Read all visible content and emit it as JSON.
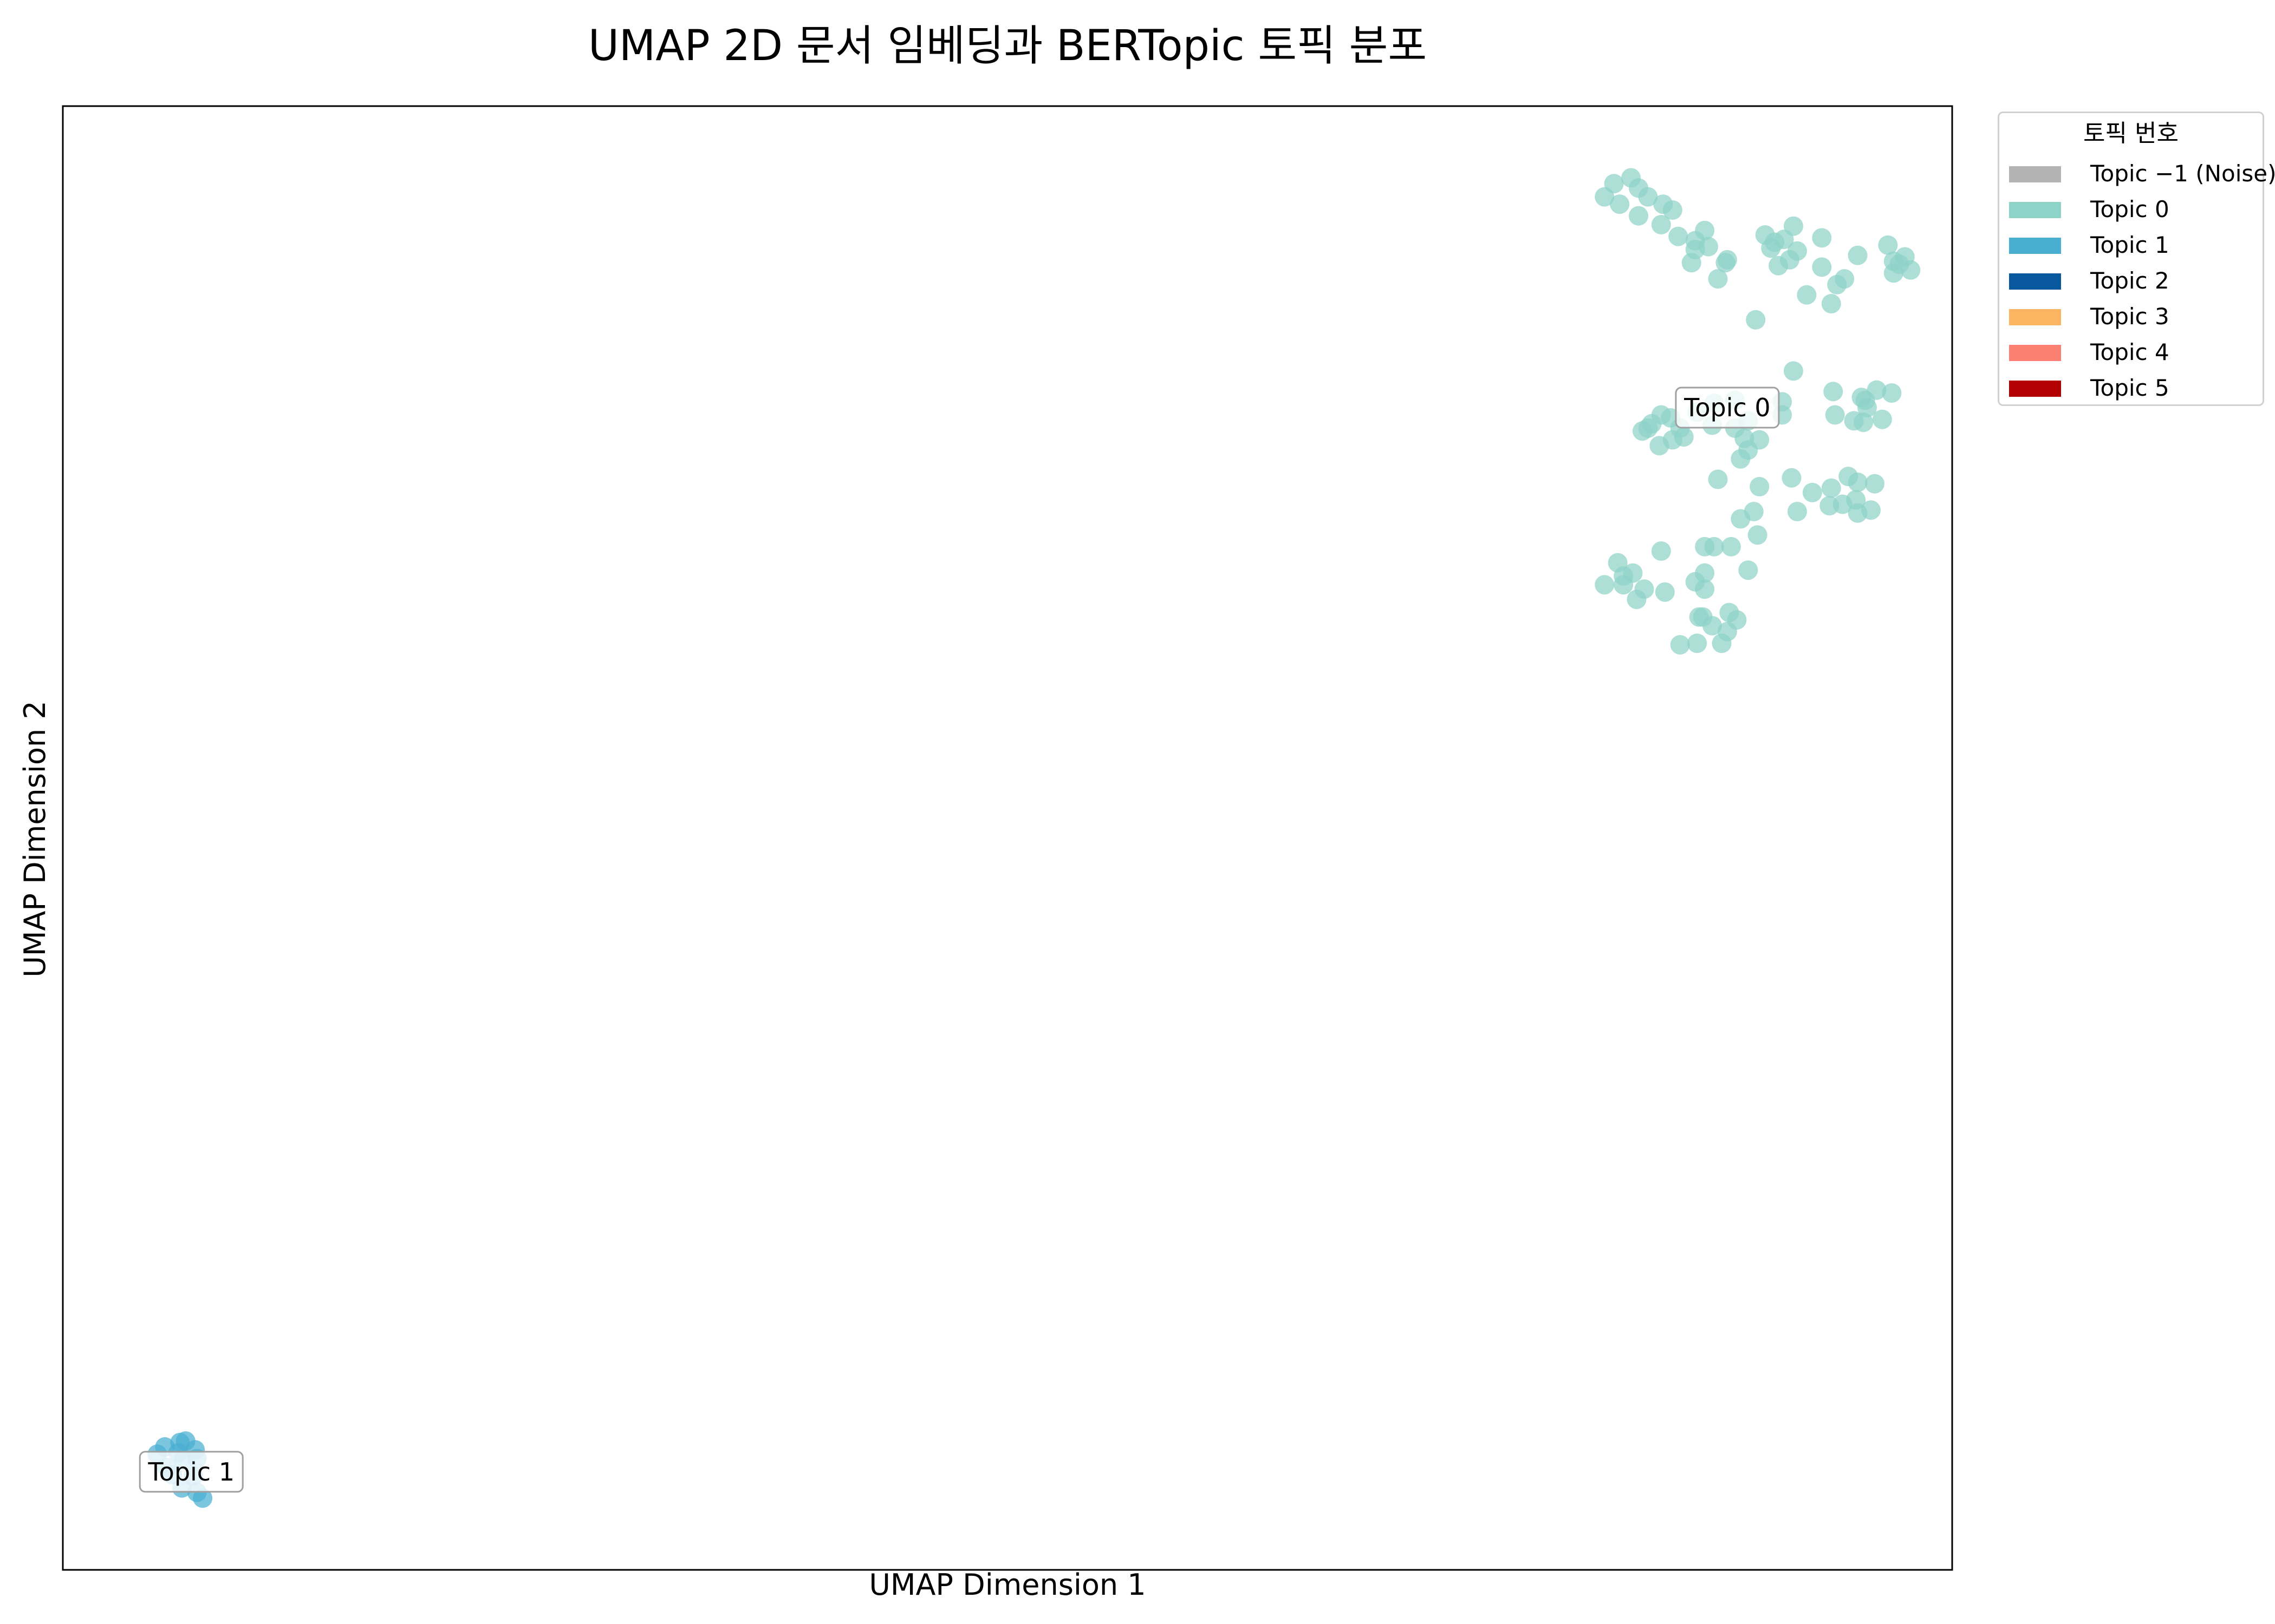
{
  "chart_data": {
    "type": "scatter",
    "title": "UMAP 2D 문서 임베딩과 BERTopic 토픽 분포",
    "xlabel": "UMAP Dimension 1",
    "ylabel": "UMAP Dimension 2",
    "xlim": [
      0,
      100
    ],
    "ylim": [
      0,
      100
    ],
    "grid": false,
    "legend": {
      "title": "토픽 번호",
      "placement": "outside-right-top",
      "entries": [
        {
          "label": "Topic −1 (Noise)",
          "color": "#b3b3b3"
        },
        {
          "label": "Topic 0",
          "color": "#8dd3c7"
        },
        {
          "label": "Topic 1",
          "color": "#4aaed1"
        },
        {
          "label": "Topic 2",
          "color": "#08589e"
        },
        {
          "label": "Topic 3",
          "color": "#fdb462"
        },
        {
          "label": "Topic 4",
          "color": "#fb8072"
        },
        {
          "label": "Topic 5",
          "color": "#b30000"
        }
      ]
    },
    "annotations": [
      {
        "text": "Topic 0",
        "x": 88.1,
        "y": 79.4
      },
      {
        "text": "Topic 1",
        "x": 6.8,
        "y": 6.7
      }
    ],
    "series": [
      {
        "name": "Topic 0",
        "color": "#8dd3c7",
        "points": [
          [
            81.6,
            93.8
          ],
          [
            82.1,
            94.7
          ],
          [
            83.0,
            95.1
          ],
          [
            83.4,
            94.4
          ],
          [
            83.9,
            93.8
          ],
          [
            82.4,
            93.3
          ],
          [
            84.7,
            93.3
          ],
          [
            85.2,
            92.9
          ],
          [
            83.4,
            92.5
          ],
          [
            84.6,
            91.9
          ],
          [
            85.5,
            91.1
          ],
          [
            86.4,
            90.8
          ],
          [
            86.4,
            90.2
          ],
          [
            86.9,
            91.5
          ],
          [
            88.0,
            89.3
          ],
          [
            86.2,
            89.3
          ],
          [
            87.1,
            90.4
          ],
          [
            87.6,
            88.2
          ],
          [
            90.1,
            91.2
          ],
          [
            90.6,
            90.7
          ],
          [
            91.1,
            90.9
          ],
          [
            91.6,
            91.8
          ],
          [
            90.4,
            90.3
          ],
          [
            91.8,
            90.1
          ],
          [
            93.1,
            89.0
          ],
          [
            93.9,
            87.8
          ],
          [
            93.1,
            91.0
          ],
          [
            94.3,
            88.2
          ],
          [
            96.6,
            90.5
          ],
          [
            97.2,
            89.2
          ],
          [
            96.9,
            88.6
          ],
          [
            97.5,
            89.7
          ],
          [
            95.0,
            89.8
          ],
          [
            96.9,
            89.4
          ],
          [
            97.8,
            88.8
          ],
          [
            92.3,
            87.1
          ],
          [
            89.6,
            85.4
          ],
          [
            93.6,
            86.5
          ],
          [
            90.8,
            89.1
          ],
          [
            91.4,
            89.5
          ],
          [
            88.1,
            89.5
          ],
          [
            91.6,
            81.9
          ],
          [
            93.7,
            80.5
          ],
          [
            95.2,
            80.1
          ],
          [
            96.0,
            80.6
          ],
          [
            96.8,
            80.4
          ],
          [
            95.5,
            79.4
          ],
          [
            94.8,
            78.5
          ],
          [
            95.3,
            78.4
          ],
          [
            96.3,
            78.6
          ],
          [
            93.8,
            78.9
          ],
          [
            95.4,
            79.9
          ],
          [
            83.6,
            77.8
          ],
          [
            84.1,
            78.3
          ],
          [
            84.6,
            78.9
          ],
          [
            85.1,
            78.7
          ],
          [
            85.6,
            78.0
          ],
          [
            85.8,
            77.4
          ],
          [
            85.2,
            77.2
          ],
          [
            84.5,
            76.8
          ],
          [
            86.5,
            79.1
          ],
          [
            83.9,
            78.0
          ],
          [
            87.4,
            79.7
          ],
          [
            88.5,
            79.9
          ],
          [
            88.5,
            78.0
          ],
          [
            89.0,
            77.3
          ],
          [
            89.2,
            76.5
          ],
          [
            89.8,
            77.2
          ],
          [
            88.8,
            75.9
          ],
          [
            91.0,
            78.9
          ],
          [
            89.2,
            78.5
          ],
          [
            87.3,
            78.2
          ],
          [
            91.0,
            79.8
          ],
          [
            87.6,
            74.5
          ],
          [
            89.8,
            74.0
          ],
          [
            89.5,
            72.3
          ],
          [
            88.8,
            71.8
          ],
          [
            89.7,
            70.7
          ],
          [
            91.5,
            74.6
          ],
          [
            92.6,
            73.6
          ],
          [
            94.5,
            74.7
          ],
          [
            93.6,
            73.9
          ],
          [
            95.0,
            74.3
          ],
          [
            94.9,
            73.1
          ],
          [
            93.5,
            72.7
          ],
          [
            94.2,
            72.8
          ],
          [
            95.0,
            72.2
          ],
          [
            95.9,
            74.2
          ],
          [
            95.7,
            72.4
          ],
          [
            91.8,
            72.3
          ],
          [
            84.6,
            69.6
          ],
          [
            86.9,
            69.9
          ],
          [
            87.4,
            69.9
          ],
          [
            88.3,
            69.9
          ],
          [
            86.9,
            68.1
          ],
          [
            86.4,
            67.5
          ],
          [
            84.8,
            66.8
          ],
          [
            82.6,
            67.9
          ],
          [
            83.1,
            68.1
          ],
          [
            82.3,
            68.8
          ],
          [
            82.6,
            67.3
          ],
          [
            83.3,
            66.3
          ],
          [
            81.6,
            67.3
          ],
          [
            86.9,
            67.0
          ],
          [
            89.2,
            68.3
          ],
          [
            86.8,
            65.1
          ],
          [
            86.6,
            65.1
          ],
          [
            87.3,
            64.5
          ],
          [
            88.6,
            64.9
          ],
          [
            88.1,
            64.1
          ],
          [
            87.8,
            63.3
          ],
          [
            86.5,
            63.3
          ],
          [
            85.6,
            63.2
          ],
          [
            83.7,
            67.0
          ],
          [
            88.2,
            65.4
          ]
        ]
      },
      {
        "name": "Topic 1",
        "color": "#4aaed1",
        "points": [
          [
            5.4,
            8.4
          ],
          [
            6.2,
            8.7
          ],
          [
            6.5,
            8.8
          ],
          [
            7.0,
            8.2
          ],
          [
            6.1,
            8.0
          ],
          [
            5.0,
            7.9
          ],
          [
            7.1,
            7.6
          ],
          [
            6.4,
            7.5
          ],
          [
            5.5,
            7.0
          ],
          [
            6.3,
            5.6
          ],
          [
            7.1,
            5.3
          ],
          [
            7.4,
            4.9
          ],
          [
            5.8,
            6.5
          ],
          [
            6.9,
            6.4
          ]
        ]
      }
    ]
  }
}
